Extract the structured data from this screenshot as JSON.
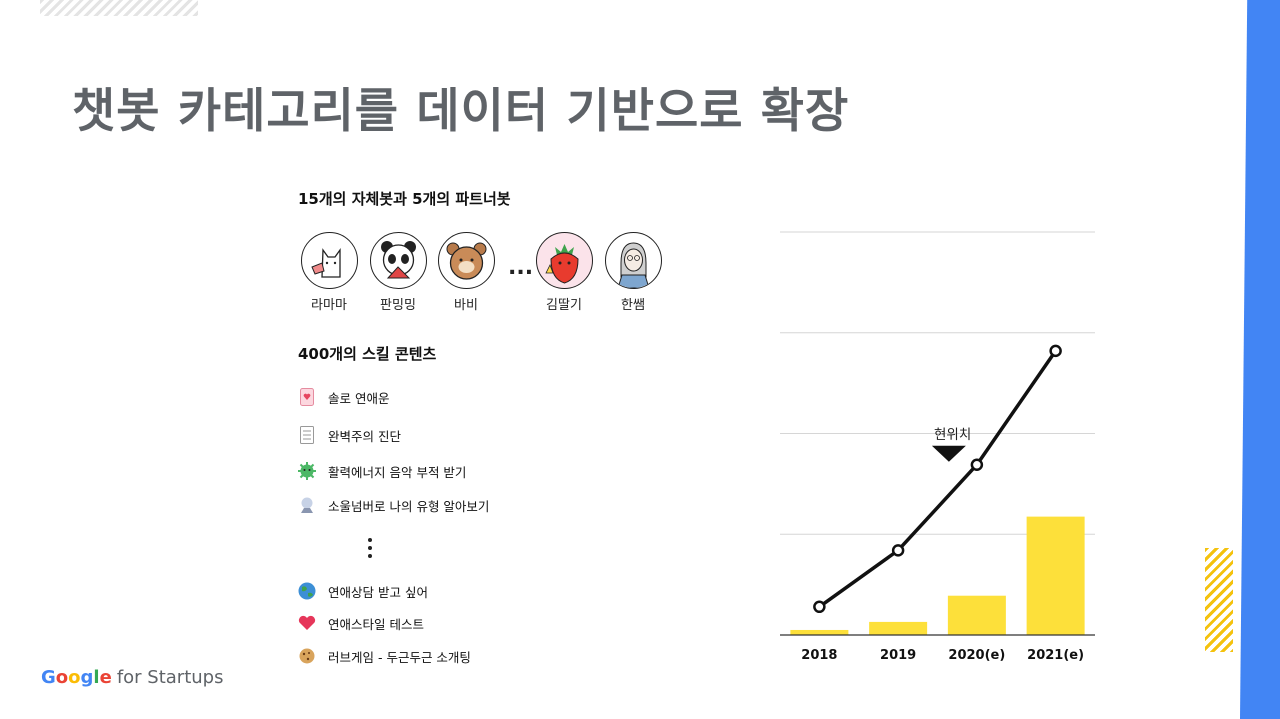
{
  "slide": {
    "title": "챗봇 카테고리를 데이터 기반으로 확장",
    "section_bots": "15개의 자체봇과 5개의 파트너봇",
    "section_skills": "400개의 스킬 콘텐츠",
    "ellipsis": "...",
    "now_label": "현위치",
    "footer": {
      "brand": [
        "G",
        "o",
        "o",
        "g",
        "l",
        "e"
      ],
      "rest": "for Startups"
    },
    "brand_colors": {
      "blue": "#4285F4",
      "red": "#EA4335",
      "yellow": "#FBBC05",
      "green": "#34A853",
      "bar": "#FDE03A"
    }
  },
  "bots": [
    {
      "name": "라마마",
      "icon": "cat-icon"
    },
    {
      "name": "판밍밍",
      "icon": "panda-icon"
    },
    {
      "name": "바비",
      "icon": "bear-icon"
    },
    {
      "name": "김딸기",
      "icon": "strawberry-icon"
    },
    {
      "name": "한쌤",
      "icon": "teacher-icon"
    }
  ],
  "skills": [
    {
      "label": "솔로 연애운",
      "icon": "card-icon"
    },
    {
      "label": "완벽주의 진단",
      "icon": "checklist-icon"
    },
    {
      "label": "활력에너지 음악 부적 받기",
      "icon": "virus-icon"
    },
    {
      "label": "소울넘버로 나의 유형 알아보기",
      "icon": "crystal-ball-icon"
    },
    {
      "label": "연애상담 받고 싶어",
      "icon": "globe-icon"
    },
    {
      "label": "연애스타일 테스트",
      "icon": "heart-icon"
    },
    {
      "label": "러브게임 - 두근두근 소개팅",
      "icon": "cookie-icon"
    }
  ],
  "chart_data": {
    "type": "bar",
    "categories": [
      "2018",
      "2019",
      "2020(e)",
      "2021(e)"
    ],
    "series": [
      {
        "type": "bar",
        "values": [
          1.0,
          2.6,
          7.8,
          23.5
        ]
      },
      {
        "type": "line",
        "values": [
          5.6,
          16.8,
          33.8,
          56.4
        ]
      }
    ],
    "ylim": [
      0,
      80
    ],
    "grid": true,
    "annotation": {
      "label": "현위치",
      "category": "2020(e)"
    }
  }
}
